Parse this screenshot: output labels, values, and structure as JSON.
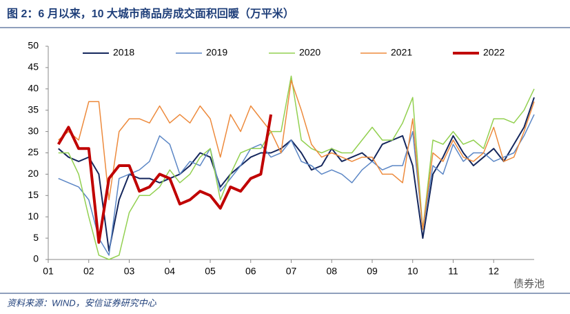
{
  "chart_data": {
    "type": "line",
    "title": "图 2：6 月以来，10 大城市商品房成交面积回暖（万平米）",
    "source": "资料来源：WIND，安信证券研究中心",
    "watermark": "债券池",
    "x": [
      1.25,
      1.5,
      1.75,
      2,
      2.25,
      2.5,
      2.75,
      3,
      3.25,
      3.5,
      3.75,
      4,
      4.25,
      4.5,
      4.75,
      5,
      5.25,
      5.5,
      5.75,
      6,
      6.25,
      6.5,
      6.75,
      7,
      7.25,
      7.5,
      7.75,
      8,
      8.25,
      8.5,
      8.75,
      9,
      9.25,
      9.5,
      9.75,
      10,
      10.25,
      10.5,
      10.75,
      11,
      11.25,
      11.5,
      11.75,
      12,
      12.25,
      12.5,
      12.75,
      13
    ],
    "series": [
      {
        "name": "2018",
        "color": "#14265c",
        "width": 2,
        "values": [
          26,
          24,
          23,
          24,
          20,
          2,
          14,
          20,
          19,
          19,
          18,
          19,
          20,
          22,
          25,
          24,
          17,
          20,
          22,
          24,
          25,
          25,
          26,
          28,
          25,
          21,
          22,
          26,
          23,
          24,
          25,
          23,
          27,
          28,
          29,
          22,
          5,
          20,
          24,
          29,
          25,
          22,
          24,
          26,
          23,
          27,
          31,
          38
        ]
      },
      {
        "name": "2019",
        "color": "#5b86c5",
        "width": 1.5,
        "values": [
          19,
          18,
          17,
          14,
          5,
          1,
          19,
          20,
          21,
          23,
          29,
          27,
          20,
          23,
          22,
          26,
          16,
          19,
          22,
          26,
          27,
          24,
          25,
          28,
          23,
          22,
          20,
          21,
          20,
          18,
          21,
          23,
          21,
          22,
          22,
          30,
          7,
          22,
          20,
          27,
          23,
          25,
          25,
          23,
          24,
          25,
          29,
          34
        ]
      },
      {
        "name": "2020",
        "color": "#92d050",
        "width": 1.5,
        "values": [
          25,
          25,
          20,
          10,
          1,
          0,
          1,
          11,
          15,
          15,
          17,
          21,
          18,
          20,
          24,
          26,
          14,
          20,
          25,
          26,
          26,
          30,
          30,
          43,
          28,
          26,
          25,
          26,
          25,
          25,
          28,
          31,
          28,
          28,
          32,
          38,
          7,
          28,
          27,
          30,
          27,
          28,
          26,
          33,
          33,
          32,
          35,
          40
        ]
      },
      {
        "name": "2021",
        "color": "#ed8a3c",
        "width": 1.5,
        "values": [
          28,
          30,
          28,
          37,
          37,
          14,
          30,
          33,
          33,
          32,
          36,
          32,
          34,
          32,
          36,
          33,
          24,
          34,
          30,
          36,
          33,
          30,
          25,
          42,
          35,
          27,
          24,
          25,
          24,
          23,
          24,
          24,
          20,
          20,
          18,
          33,
          7,
          25,
          23,
          28,
          24,
          23,
          25,
          31,
          23,
          24,
          30,
          37
        ]
      },
      {
        "name": "2022",
        "color": "#c00000",
        "width": 4,
        "values": [
          27,
          31,
          26,
          26,
          4,
          19,
          22,
          22,
          16,
          17,
          20,
          19,
          13,
          14,
          16,
          15,
          12,
          17,
          16,
          19,
          20,
          34,
          null,
          null,
          null,
          null,
          null,
          null,
          null,
          null,
          null,
          null,
          null,
          null,
          null,
          null,
          null,
          null,
          null,
          null,
          null,
          null,
          null,
          null,
          null,
          null,
          null,
          null
        ]
      }
    ],
    "xlim": [
      1,
      13
    ],
    "xticks": [
      {
        "value": 1,
        "label": "01"
      },
      {
        "value": 2,
        "label": "02"
      },
      {
        "value": 3,
        "label": "03"
      },
      {
        "value": 4,
        "label": "04"
      },
      {
        "value": 5,
        "label": "05"
      },
      {
        "value": 6,
        "label": "06"
      },
      {
        "value": 7,
        "label": "07"
      },
      {
        "value": 8,
        "label": "08"
      },
      {
        "value": 9,
        "label": "09"
      },
      {
        "value": 10,
        "label": "10"
      },
      {
        "value": 11,
        "label": "11"
      },
      {
        "value": 12,
        "label": "12"
      }
    ],
    "ylim": [
      0,
      50
    ],
    "yticks": [
      0,
      5,
      10,
      15,
      20,
      25,
      30,
      35,
      40,
      45,
      50
    ],
    "grid": false,
    "legend": "top"
  }
}
